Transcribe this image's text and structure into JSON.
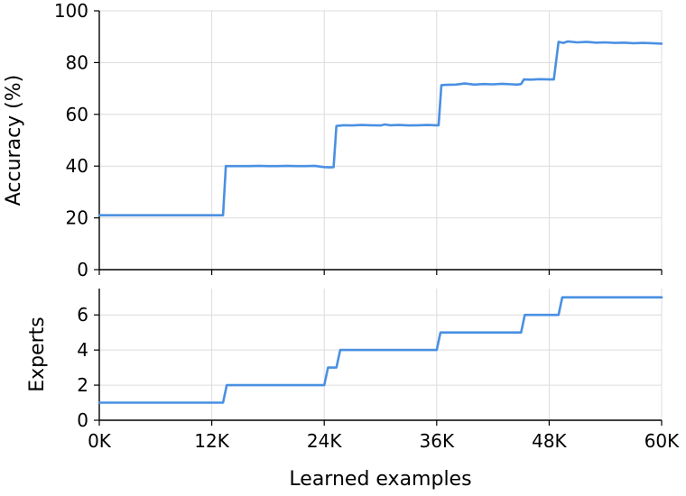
{
  "chart_data": [
    {
      "type": "line",
      "title": "",
      "xlabel": "",
      "ylabel": "Accuracy (%)",
      "xlim": [
        0,
        60000
      ],
      "ylim": [
        0,
        100
      ],
      "yticks": [
        0,
        20,
        40,
        60,
        80,
        100
      ],
      "ytick_labels": [
        "0",
        "20",
        "40",
        "60",
        "80",
        "100"
      ],
      "xticks": [
        0,
        12000,
        24000,
        36000,
        48000,
        60000
      ],
      "grid": true,
      "series": [
        {
          "color": "#4a90e2",
          "x": [
            0,
            2000,
            4000,
            6000,
            8000,
            10000,
            12000,
            13200,
            13500,
            14000,
            15000,
            16000,
            17000,
            18000,
            19000,
            20000,
            21000,
            22000,
            23000,
            24000,
            24600,
            25000,
            25300,
            26000,
            27000,
            28000,
            29000,
            30000,
            30500,
            31000,
            32000,
            33000,
            34000,
            35000,
            36000,
            36200,
            36500,
            37000,
            38000,
            39000,
            40000,
            41000,
            42000,
            43000,
            44000,
            44600,
            45000,
            45300,
            46000,
            47000,
            48000,
            48500,
            49000,
            49500,
            50000,
            51000,
            52000,
            53000,
            54000,
            55000,
            56000,
            57000,
            58000,
            59000,
            60000
          ],
          "y": [
            21,
            21,
            21,
            21,
            21,
            21,
            21,
            21,
            40,
            40,
            40,
            40,
            40.1,
            40,
            40,
            40.1,
            40,
            40,
            40.1,
            39.6,
            39.5,
            39.6,
            55.5,
            55.8,
            55.7,
            55.9,
            55.8,
            55.7,
            56.1,
            55.8,
            55.9,
            55.7,
            55.8,
            55.9,
            55.8,
            55.8,
            71.3,
            71.4,
            71.5,
            71.9,
            71.5,
            71.7,
            71.6,
            71.8,
            71.6,
            71.5,
            71.7,
            73.5,
            73.4,
            73.6,
            73.5,
            73.5,
            88,
            87.6,
            88.2,
            87.8,
            88,
            87.7,
            87.8,
            87.6,
            87.7,
            87.5,
            87.6,
            87.5,
            87.3
          ]
        }
      ]
    },
    {
      "type": "line",
      "title": "",
      "xlabel": "Learned examples",
      "ylabel": "Experts",
      "xlim": [
        0,
        60000
      ],
      "ylim": [
        0,
        7.5
      ],
      "yticks": [
        0,
        2,
        4,
        6
      ],
      "ytick_labels": [
        "0",
        "2",
        "4",
        "6"
      ],
      "xticks": [
        0,
        12000,
        24000,
        36000,
        48000,
        60000
      ],
      "xtick_labels": [
        "0K",
        "12K",
        "24K",
        "36K",
        "48K",
        "60K"
      ],
      "grid": true,
      "series": [
        {
          "color": "#4a90e2",
          "x": [
            0,
            13200,
            13600,
            24000,
            24400,
            25300,
            25700,
            36000,
            36400,
            45000,
            45400,
            49000,
            49400,
            60000
          ],
          "y": [
            1,
            1,
            2,
            2,
            3,
            3,
            4,
            4,
            5,
            5,
            6,
            6,
            7,
            7
          ]
        }
      ]
    }
  ]
}
